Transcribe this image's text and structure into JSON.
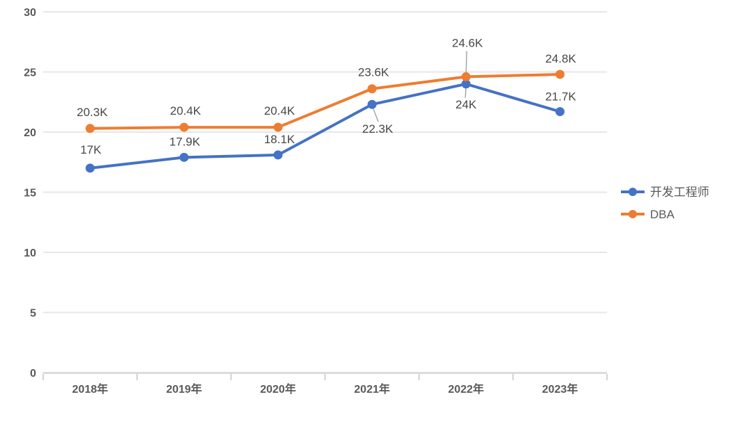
{
  "chart_data": {
    "type": "line",
    "title": "",
    "xlabel": "",
    "ylabel": "",
    "categories": [
      "2018年",
      "2019年",
      "2020年",
      "2021年",
      "2022年",
      "2023年"
    ],
    "y_ticks": [
      0,
      5,
      10,
      15,
      20,
      25,
      30
    ],
    "ylim": [
      0,
      30
    ],
    "grid": true,
    "legend_position": "right",
    "series": [
      {
        "name": "开发工程师",
        "color": "#4472C4",
        "values": [
          17,
          17.9,
          18.1,
          22.3,
          24,
          21.7
        ],
        "labels": [
          "17K",
          "17.9K",
          "18.1K",
          "22.3K",
          "24K",
          "21.7K"
        ],
        "label_offsets": [
          [
            1,
            -27
          ],
          [
            1,
            -23
          ],
          [
            2,
            -23
          ],
          [
            8,
            35
          ],
          [
            0,
            29
          ],
          [
            1,
            -22
          ]
        ],
        "leaders": [
          null,
          null,
          null,
          [
            1,
            4,
            9,
            25
          ],
          [
            0,
            3,
            -1,
            20
          ],
          null
        ]
      },
      {
        "name": "DBA",
        "color": "#ED7D31",
        "values": [
          20.3,
          20.4,
          20.4,
          23.6,
          24.6,
          24.8
        ],
        "labels": [
          "20.3K",
          "20.4K",
          "20.4K",
          "23.6K",
          "24.6K",
          "24.8K"
        ],
        "label_offsets": [
          [
            3,
            -24
          ],
          [
            2,
            -24
          ],
          [
            2,
            -24
          ],
          [
            2,
            -24
          ],
          [
            2,
            -49
          ],
          [
            1,
            -23
          ]
        ],
        "leaders": [
          null,
          null,
          null,
          null,
          [
            0,
            -4,
            1,
            -37
          ],
          null
        ]
      }
    ],
    "colors": {
      "background": "#ffffff",
      "gridline": "#E7E7E7",
      "axis_line": "#DBDBDB",
      "axis_tick": "#C4C4C4",
      "axis_text": "#595959",
      "data_label_text": "#474747",
      "legend_text": "#595959",
      "leader_line": "#A6A6A6"
    }
  }
}
